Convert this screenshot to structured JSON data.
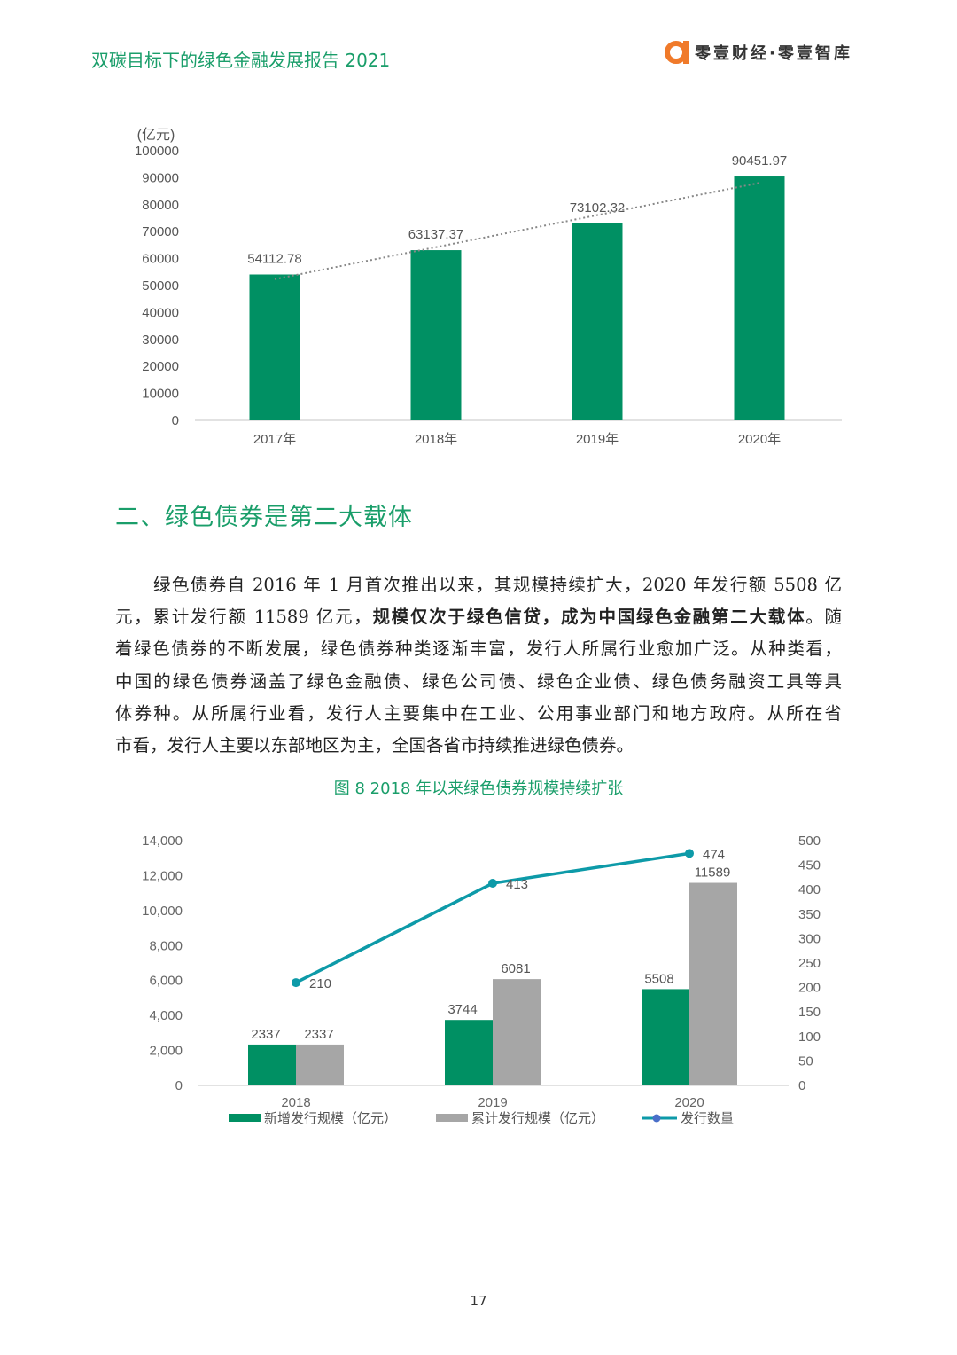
{
  "header": {
    "doc_title": "双碳目标下的绿色金融发展报告 2021",
    "brand": "零壹财经·零壹智库"
  },
  "colors": {
    "green": "#009063",
    "gray": "#a6a6a6",
    "line": "#0d9aa8",
    "title_green": "#1a9e6a",
    "brand_orange": "#f07a2a"
  },
  "chart_data": [
    {
      "type": "bar",
      "ylabel": "(亿元)",
      "categories": [
        "2017年",
        "2018年",
        "2019年",
        "2020年"
      ],
      "values": [
        54112.78,
        63137.37,
        73102.32,
        90451.97
      ],
      "value_labels": [
        "54112.78",
        "63137.37",
        "73102.32",
        "90451.97"
      ],
      "ylim": [
        0,
        100000
      ],
      "yticks": [
        0,
        10000,
        20000,
        30000,
        40000,
        50000,
        60000,
        70000,
        80000,
        90000,
        100000
      ],
      "trendline": "dotted linear",
      "grid": false
    },
    {
      "type": "bar+line",
      "title": "图 8 2018 年以来绿色债券规模持续扩张",
      "categories": [
        "2018",
        "2019",
        "2020"
      ],
      "series": [
        {
          "name": "新增发行规模（亿元）",
          "type": "bar",
          "axis": "left",
          "values": [
            2337,
            3744,
            5508
          ]
        },
        {
          "name": "累计发行规模（亿元）",
          "type": "bar",
          "axis": "left",
          "values": [
            2337,
            6081,
            11589
          ]
        },
        {
          "name": "发行数量",
          "type": "line",
          "axis": "right",
          "values": [
            210,
            413,
            474
          ]
        }
      ],
      "ylim_left": [
        0,
        14000
      ],
      "yticks_left": [
        "0",
        "2,000",
        "4,000",
        "6,000",
        "8,000",
        "10,000",
        "12,000",
        "14,000"
      ],
      "ylim_right": [
        0,
        500
      ],
      "yticks_right": [
        "0",
        "50",
        "100",
        "150",
        "200",
        "250",
        "300",
        "350",
        "400",
        "450",
        "500"
      ],
      "legend": "bottom",
      "grid": false
    }
  ],
  "section": {
    "title": "二、绿色债券是第二大载体"
  },
  "paragraph": [
    [
      {
        "t": "绿色债券自 2016 年 1 月首次推出以来，其规模持续扩大，2020 年发行额 5508 亿"
      }
    ],
    [
      {
        "t": "元，累计发行额 11589 亿元，"
      },
      {
        "t": "规模仅次于绿色信贷，成为中国绿色金融第二大载体",
        "b": true
      },
      {
        "t": "。随"
      }
    ],
    [
      {
        "t": "着绿色债券的不断发展，绿色债券种类逐渐丰富，发行人所属行业愈加广泛。从种类看，"
      }
    ],
    [
      {
        "t": "中国的绿色债券涵盖了绿色金融债、绿色公司债、绿色企业债、绿色债务融资工具等具"
      }
    ],
    [
      {
        "t": "体券种。从所属行业看，发行人主要集中在工业、公用事业部门和地方政府。从所在省"
      }
    ],
    [
      {
        "t": "市看，发行人主要以东部地区为主，全国各省市持续推进绿色债券。"
      }
    ]
  ],
  "figure": {
    "caption": "图 8 2018 年以来绿色债券规模持续扩张"
  },
  "footer": {
    "page_number": "17"
  }
}
